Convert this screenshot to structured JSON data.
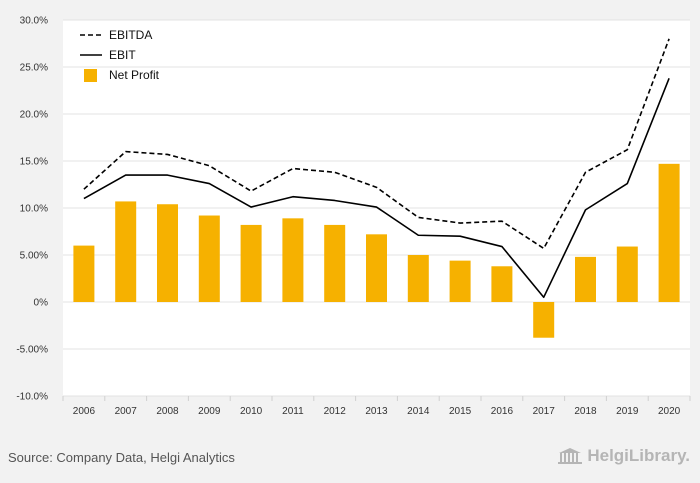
{
  "chart_data": {
    "type": "bar",
    "categories": [
      "2006",
      "2007",
      "2008",
      "2009",
      "2010",
      "2011",
      "2012",
      "2013",
      "2014",
      "2015",
      "2016",
      "2017",
      "2018",
      "2019",
      "2020"
    ],
    "y_ticks": [
      "30.0%",
      "25.0%",
      "20.0%",
      "15.0%",
      "10.0%",
      "5.00%",
      "0%",
      "-5.00%",
      "-10.0%"
    ],
    "ylim": [
      -10,
      30
    ],
    "grid": true,
    "legend_position": "top-left",
    "series": [
      {
        "name": "EBITDA",
        "kind": "line-dashed",
        "color": "#000000",
        "values": [
          12.0,
          16.0,
          15.7,
          14.5,
          11.8,
          14.2,
          13.8,
          12.2,
          9.0,
          8.4,
          8.6,
          5.7,
          13.8,
          16.2,
          28.0
        ]
      },
      {
        "name": "EBIT",
        "kind": "line",
        "color": "#000000",
        "values": [
          11.0,
          13.5,
          13.5,
          12.6,
          10.1,
          11.2,
          10.8,
          10.1,
          7.1,
          7.0,
          5.9,
          0.5,
          9.8,
          12.6,
          23.8
        ]
      },
      {
        "name": "Net Profit",
        "kind": "bar",
        "color": "#f6b100",
        "values": [
          6.0,
          10.7,
          10.4,
          9.2,
          8.2,
          8.9,
          8.2,
          7.2,
          5.0,
          4.4,
          3.8,
          -3.8,
          4.8,
          5.9,
          14.7
        ]
      }
    ]
  },
  "footer": {
    "source": "Source: Company Data, Helgi Analytics",
    "brand": "HelgiLibrary."
  }
}
